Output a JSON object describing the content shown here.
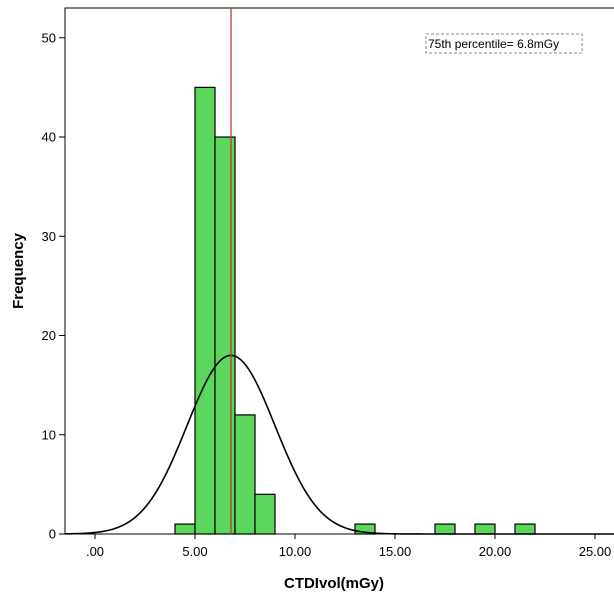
{
  "chart_data": {
    "type": "bar",
    "xlabel": "CTDIvol(mGy)",
    "ylabel": "Frequency",
    "x_ticks": [
      ".00",
      "5.00",
      "10.00",
      "15.00",
      "20.00",
      "25.00"
    ],
    "y_ticks": [
      "0",
      "10",
      "20",
      "30",
      "40",
      "50"
    ],
    "xlim": [
      -1.5,
      26.5
    ],
    "ylim": [
      0,
      53
    ],
    "bins": [
      {
        "start": 4.0,
        "end": 5.0,
        "count": 1
      },
      {
        "start": 5.0,
        "end": 6.0,
        "count": 45
      },
      {
        "start": 6.0,
        "end": 7.0,
        "count": 40
      },
      {
        "start": 7.0,
        "end": 8.0,
        "count": 12
      },
      {
        "start": 8.0,
        "end": 9.0,
        "count": 4
      },
      {
        "start": 13.0,
        "end": 14.0,
        "count": 1
      },
      {
        "start": 17.0,
        "end": 18.0,
        "count": 1
      },
      {
        "start": 19.0,
        "end": 20.0,
        "count": 1
      },
      {
        "start": 21.0,
        "end": 22.0,
        "count": 1
      }
    ],
    "normal_curve": {
      "mean": 6.8,
      "sd": 2.2,
      "peak": 18
    },
    "reference_line": {
      "x": 6.8,
      "color": "#c0392b"
    },
    "annotation": "75th percentile= 6.8mGy",
    "bar_color": "#5cd65c",
    "grid": false
  }
}
